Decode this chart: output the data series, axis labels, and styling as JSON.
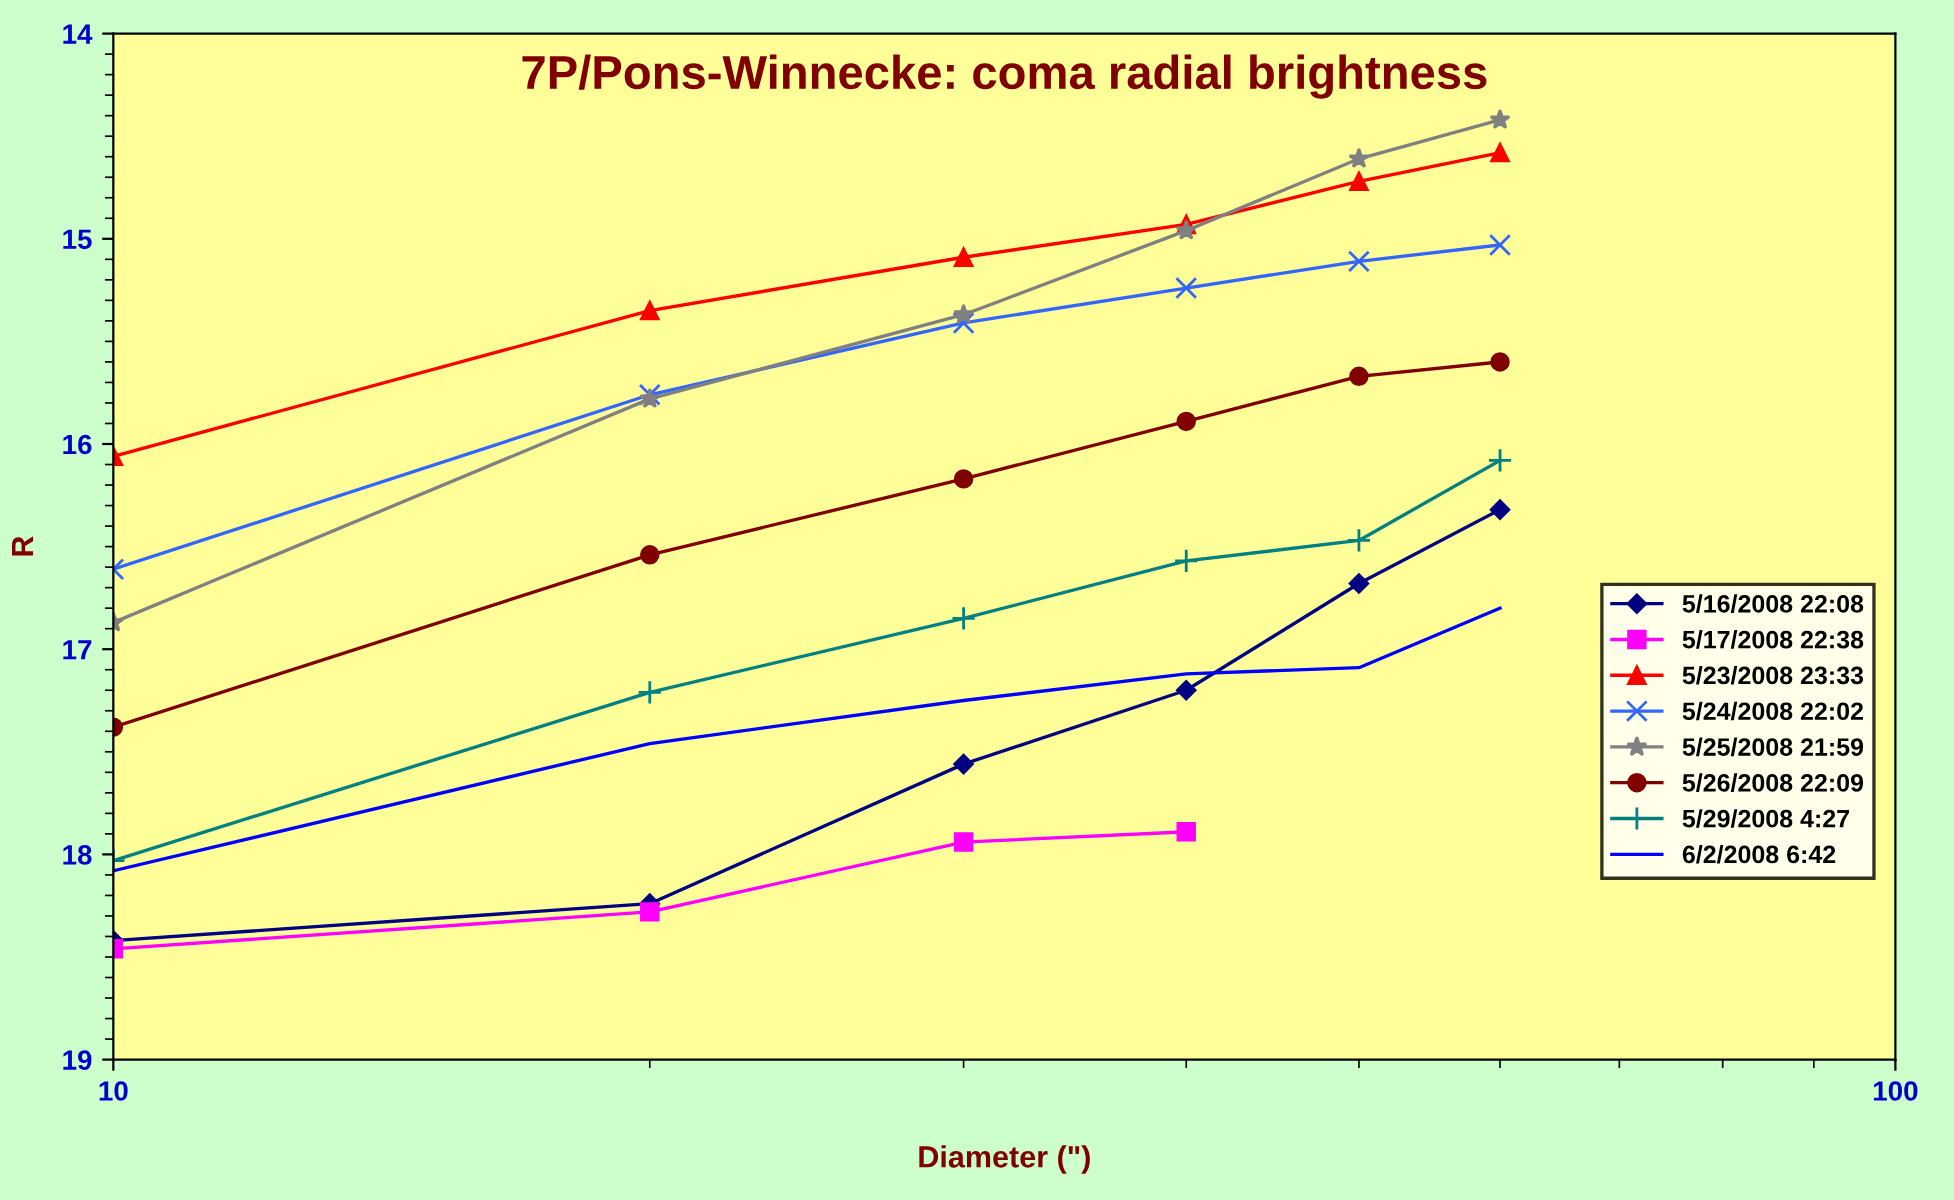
{
  "chart_data": {
    "type": "line",
    "title": "7P/Pons-Winnecke: coma radial brightness",
    "xlabel": "Diameter (\")",
    "ylabel": "R",
    "x": [
      10,
      20,
      30,
      40,
      50,
      60
    ],
    "log": "x",
    "xlim": [
      10,
      100
    ],
    "xticks": [
      10,
      100
    ],
    "ylim": [
      19,
      14
    ],
    "yticks": [
      14,
      15,
      16,
      17,
      18,
      19
    ],
    "grid": false,
    "legend": "right",
    "series": [
      {
        "name": "5/16/2008 22:08",
        "color": "#000080",
        "marker": "diamond",
        "values": [
          18.42,
          18.24,
          17.56,
          17.2,
          16.68,
          16.32
        ]
      },
      {
        "name": "5/17/2008 22:38",
        "color": "#ff00ff",
        "marker": "square",
        "values": [
          18.46,
          18.28,
          17.94,
          17.89,
          null,
          null
        ]
      },
      {
        "name": "5/23/2008 23:33",
        "color": "#ff0000",
        "marker": "triangle",
        "values": [
          16.06,
          15.35,
          15.09,
          14.93,
          14.72,
          14.58
        ]
      },
      {
        "name": "5/24/2008 22:02",
        "color": "#3366ff",
        "marker": "cross",
        "values": [
          16.61,
          15.76,
          15.41,
          15.24,
          15.11,
          15.03
        ]
      },
      {
        "name": "5/25/2008 21:59",
        "color": "#808080",
        "marker": "star",
        "values": [
          16.87,
          15.78,
          15.37,
          14.96,
          14.61,
          14.42
        ]
      },
      {
        "name": "5/26/2008 22:09",
        "color": "#800000",
        "marker": "circle",
        "values": [
          17.38,
          16.54,
          16.17,
          15.89,
          15.67,
          15.6
        ]
      },
      {
        "name": "5/29/2008 4:27",
        "color": "#008080",
        "marker": "plus",
        "values": [
          18.03,
          17.21,
          16.85,
          16.57,
          16.47,
          16.08
        ]
      },
      {
        "name": "6/2/2008 6:42",
        "color": "#0000ff",
        "marker": "none",
        "values": [
          18.08,
          17.46,
          17.25,
          17.12,
          17.09,
          16.8
        ]
      }
    ]
  }
}
